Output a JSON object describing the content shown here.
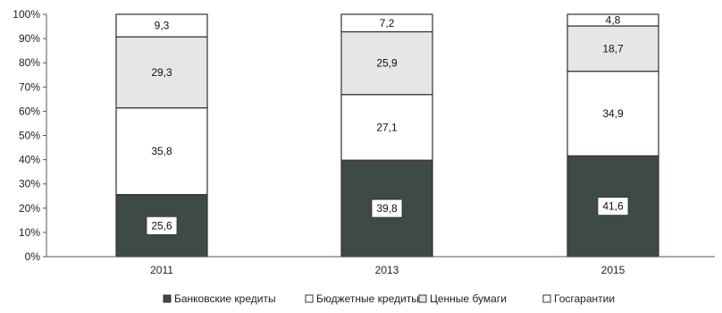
{
  "chart_data": {
    "type": "bar",
    "stacked": true,
    "percent_stacked": true,
    "categories": [
      "2011",
      "2013",
      "2015"
    ],
    "series": [
      {
        "name": "Банковские кредиты",
        "values": [
          25.6,
          39.8,
          41.6
        ],
        "color": "#3e4a44"
      },
      {
        "name": "Бюджетные кредиты",
        "values": [
          35.8,
          27.1,
          34.9
        ],
        "color": "#ffffff"
      },
      {
        "name": "Ценные бумаги",
        "values": [
          29.3,
          25.9,
          18.7
        ],
        "color": "#e6e6e6"
      },
      {
        "name": "Госгарантии",
        "values": [
          9.3,
          7.2,
          4.8
        ],
        "color": "#ffffff"
      }
    ],
    "y_ticks": [
      "0%",
      "10%",
      "20%",
      "30%",
      "40%",
      "50%",
      "60%",
      "70%",
      "80%",
      "90%",
      "100%"
    ],
    "ylim": [
      0,
      100
    ],
    "legend_position": "bottom",
    "grid": false
  }
}
